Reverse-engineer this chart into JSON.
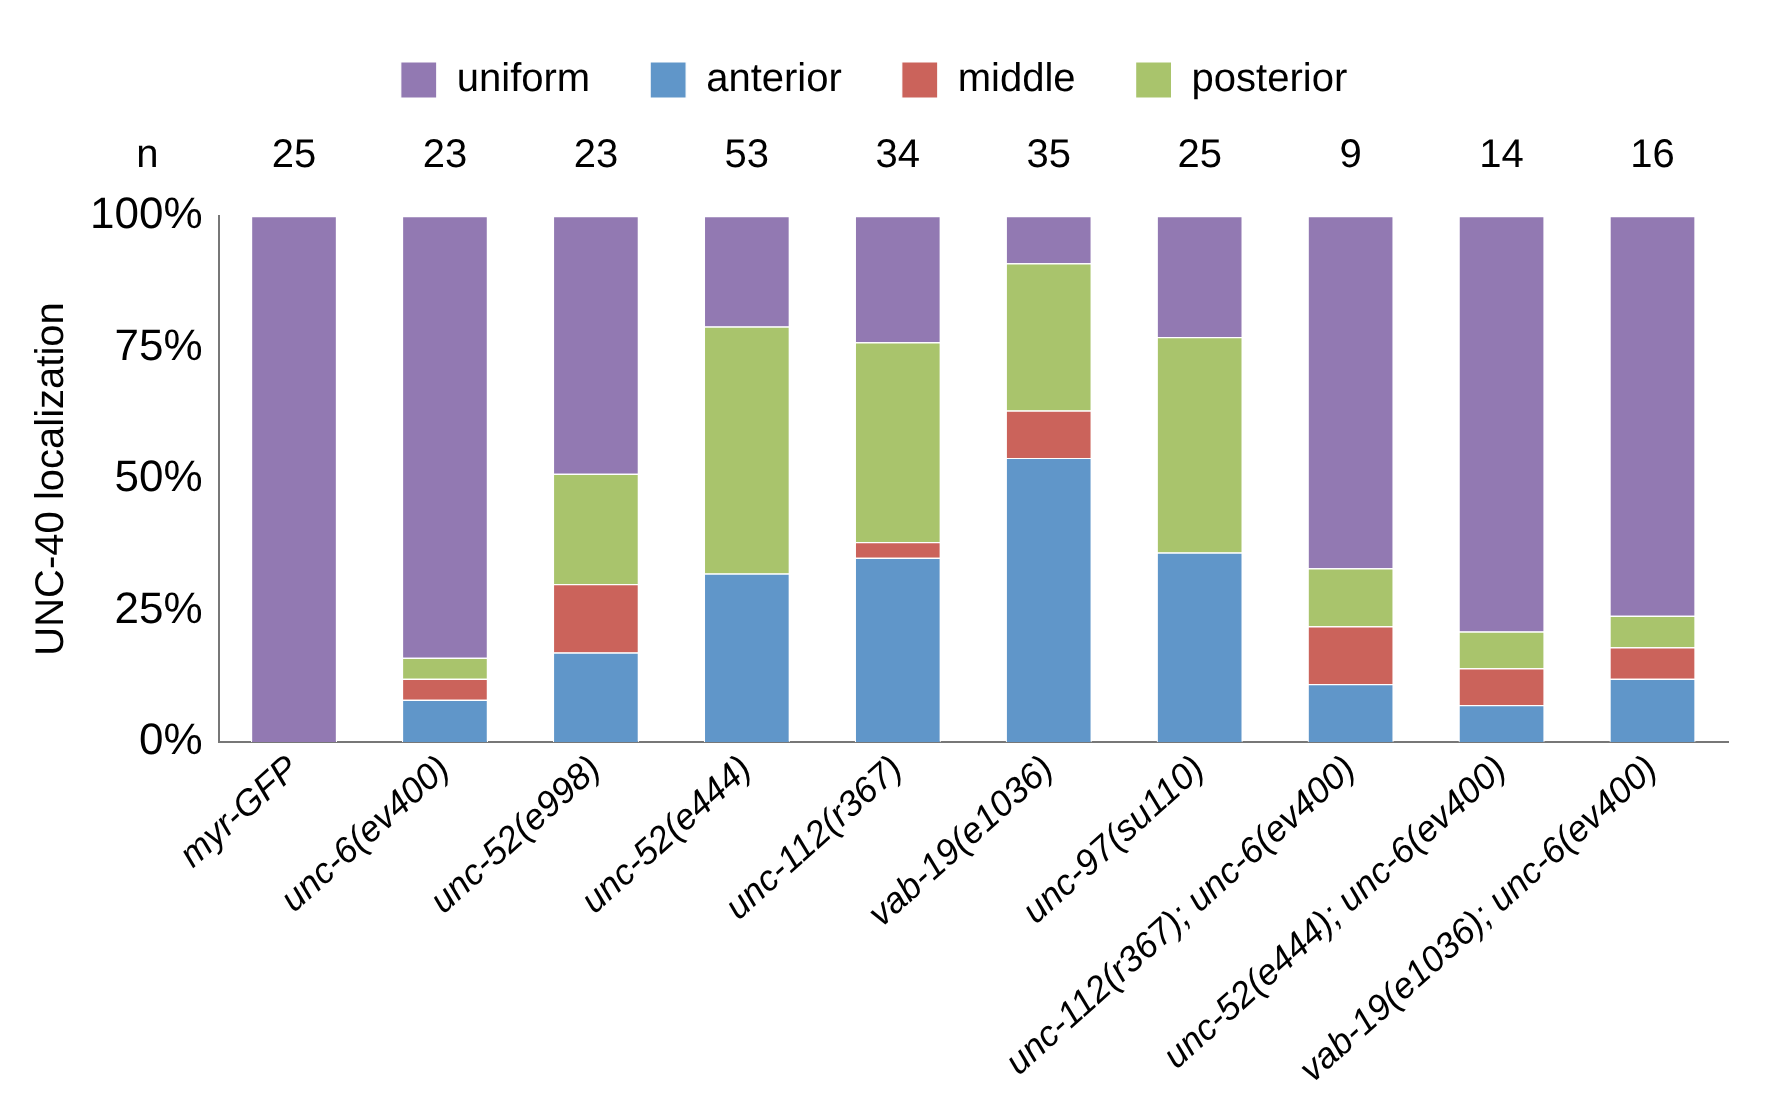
{
  "chart_data": {
    "type": "bar",
    "stacked": true,
    "ylabel": "UNC-40 localization",
    "categories": [
      "myr-GFP",
      "unc-6(ev400)",
      "unc-52(e998)",
      "unc-52(e444)",
      "unc-112(r367)",
      "vab-19(e1036)",
      "unc-97(su110)",
      "unc-112(r367); unc-6(ev400)",
      "unc-52(e444); unc-6(ev400)",
      "vab-19(e1036); unc-6(ev400)"
    ],
    "series": [
      {
        "name": "anterior",
        "color": "#6096c9",
        "values": [
          0,
          8,
          17,
          32,
          35,
          54,
          36,
          11,
          7,
          12
        ]
      },
      {
        "name": "middle",
        "color": "#cb635b",
        "values": [
          0,
          4,
          13,
          0,
          3,
          9,
          0,
          11,
          7,
          6
        ]
      },
      {
        "name": "posterior",
        "color": "#a9c46c",
        "values": [
          0,
          4,
          21,
          47,
          38,
          28,
          41,
          11,
          7,
          6
        ]
      },
      {
        "name": "uniform",
        "color": "#9279b2",
        "values": [
          100,
          84,
          49,
          21,
          24,
          9,
          23,
          67,
          79,
          76
        ]
      }
    ],
    "ylim": [
      0,
      100
    ],
    "yticks": [
      {
        "value": 0,
        "label": "0%"
      },
      {
        "value": 25,
        "label": "25%"
      },
      {
        "value": 50,
        "label": "50%"
      },
      {
        "value": 75,
        "label": "75%"
      },
      {
        "value": 100,
        "label": "100%"
      }
    ],
    "grid": false,
    "legend": "top",
    "annotations": [
      "n",
      "25",
      "23",
      "23",
      "53",
      "34",
      "35",
      "25",
      "9",
      "14",
      "16"
    ]
  }
}
